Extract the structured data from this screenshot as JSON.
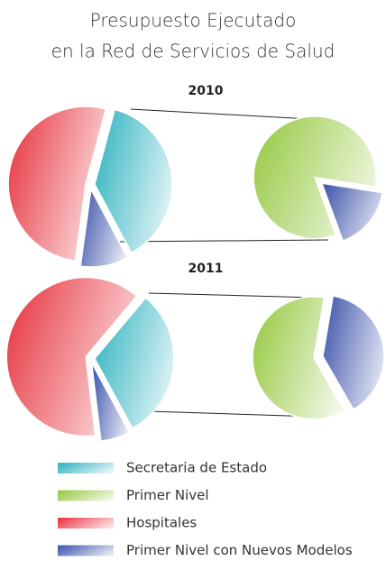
{
  "title": [
    "Presupuesto Ejecutado",
    "en la Red de Servicios de Salud"
  ],
  "legend": {
    "categories": [
      "Secretaria de Estado",
      "Primer Nivel",
      "Hospitales",
      "Primer Nivel con Nuevos Modelos"
    ],
    "colors": [
      "#3bb8c4",
      "#9ccc4c",
      "#e8404a",
      "#4a5fb0"
    ]
  },
  "chart_data": [
    {
      "type": "pie-of-pie",
      "title": "2010",
      "pies": [
        {
          "categories": [
            "Secretaria de Estado",
            "Primer Nivel con Nuevos Modelos",
            "Hospitales"
          ],
          "values": [
            38,
            10,
            52
          ]
        },
        {
          "categories": [
            "Primer Nivel",
            "Primer Nivel con Nuevos Modelos"
          ],
          "values": [
            83,
            17
          ]
        }
      ]
    },
    {
      "type": "pie-of-pie",
      "title": "2011",
      "pies": [
        {
          "categories": [
            "Secretaria de Estado",
            "Primer Nivel con Nuevos Modelos",
            "Hospitales"
          ],
          "values": [
            31,
            6,
            63
          ]
        },
        {
          "categories": [
            "Primer Nivel",
            "Primer Nivel con Nuevos Modelos"
          ],
          "values": [
            61,
            39
          ]
        }
      ]
    }
  ]
}
